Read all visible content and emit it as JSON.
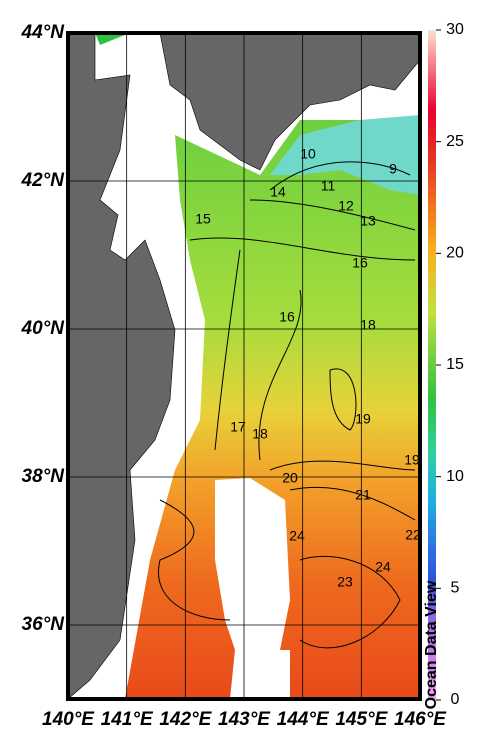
{
  "map": {
    "xlim": [
      140,
      146
    ],
    "ylim": [
      35,
      44
    ],
    "xticks": [
      {
        "value": 140,
        "label": "140°E"
      },
      {
        "value": 141,
        "label": "141°E"
      },
      {
        "value": 142,
        "label": "142°E"
      },
      {
        "value": 143,
        "label": "143°E"
      },
      {
        "value": 144,
        "label": "144°E"
      },
      {
        "value": 145,
        "label": "145°E"
      },
      {
        "value": 146,
        "label": "146°E"
      }
    ],
    "yticks": [
      {
        "value": 36,
        "label": "36°N"
      },
      {
        "value": 38,
        "label": "38°N"
      },
      {
        "value": 40,
        "label": "40°N"
      },
      {
        "value": 42,
        "label": "42°N"
      },
      {
        "value": 44,
        "label": "44°N"
      }
    ],
    "colorbar": {
      "lim": [
        0,
        30
      ],
      "ticks": [
        0,
        5,
        10,
        15,
        20,
        25,
        30
      ]
    },
    "contour_labels": [
      10,
      9,
      11,
      14,
      12,
      13,
      15,
      16,
      16,
      18,
      17,
      18,
      19,
      19,
      20,
      21,
      22,
      24,
      24,
      23
    ],
    "watermark": "Ocean Data View"
  }
}
